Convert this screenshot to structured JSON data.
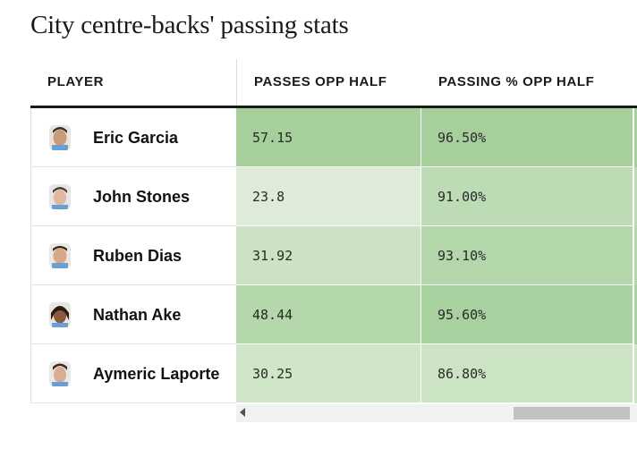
{
  "title": "City centre-backs' passing stats",
  "table": {
    "headers": {
      "player": "PLAYER",
      "col1": "PASSES OPP HALF",
      "col2": "PASSING % OPP HALF"
    },
    "rows": [
      {
        "player": "Eric Garcia",
        "passes": "57.15",
        "pct": "96.50%",
        "c1_color": "#a6cf9c",
        "c2_color": "#a6cf9c"
      },
      {
        "player": "John Stones",
        "passes": "23.8",
        "pct": "91.00%",
        "c1_color": "#ddebd8",
        "c2_color": "#bddbb5"
      },
      {
        "player": "Ruben Dias",
        "passes": "31.92",
        "pct": "93.10%",
        "c1_color": "#cbe3c4",
        "c2_color": "#b3d6aa"
      },
      {
        "player": "Nathan Ake",
        "passes": "48.44",
        "pct": "95.60%",
        "c1_color": "#b4d7ab",
        "c2_color": "#a9d1a0"
      },
      {
        "player": "Aymeric Laporte",
        "passes": "30.25",
        "pct": "86.80%",
        "c1_color": "#cfe6c8",
        "c2_color": "#cbe4c3"
      }
    ]
  },
  "colors": {
    "accent_dark": "#1a1a1a",
    "scale_high": "#a6cf9c",
    "scale_low": "#ddebd8"
  },
  "icons": {
    "scroll_left": "caret-left-icon"
  }
}
